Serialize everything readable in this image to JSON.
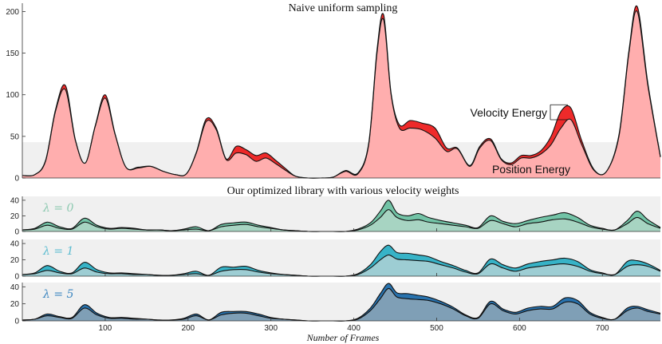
{
  "chart_data": [
    {
      "type": "area",
      "title": "Naive uniform sampling",
      "xlim": [
        0,
        770
      ],
      "ylim": [
        0,
        210
      ],
      "yticks": [
        0,
        50,
        100,
        150,
        200
      ],
      "grid": false,
      "shaded_band_y": [
        0,
        43
      ],
      "colors": {
        "position": "#ffaeae",
        "velocity": "#ee2a2a"
      },
      "series": [
        {
          "name": "Position Energy",
          "x": [
            0,
            15,
            28,
            40,
            52,
            64,
            76,
            88,
            100,
            112,
            125,
            140,
            155,
            170,
            185,
            198,
            210,
            222,
            234,
            246,
            258,
            270,
            282,
            294,
            306,
            318,
            330,
            345,
            360,
            375,
            390,
            405,
            418,
            428,
            436,
            445,
            455,
            468,
            482,
            498,
            512,
            525,
            540,
            552,
            565,
            578,
            590,
            602,
            614,
            626,
            638,
            650,
            662,
            675,
            690,
            705,
            720,
            732,
            742,
            755,
            770
          ],
          "values": [
            3,
            4,
            20,
            80,
            106,
            45,
            18,
            62,
            96,
            52,
            13,
            12,
            14,
            8,
            4,
            5,
            30,
            68,
            58,
            22,
            30,
            28,
            20,
            24,
            17,
            9,
            2,
            0,
            0,
            1,
            8,
            5,
            40,
            150,
            190,
            100,
            60,
            60,
            58,
            48,
            32,
            35,
            14,
            36,
            45,
            22,
            16,
            24,
            24,
            29,
            40,
            60,
            70,
            40,
            9,
            8,
            50,
            150,
            200,
            110,
            25
          ]
        },
        {
          "name": "Velocity Energy",
          "x": [
            0,
            15,
            28,
            40,
            52,
            64,
            76,
            88,
            100,
            112,
            125,
            140,
            155,
            170,
            185,
            198,
            210,
            222,
            234,
            246,
            258,
            270,
            282,
            294,
            306,
            318,
            330,
            345,
            360,
            375,
            390,
            405,
            418,
            428,
            436,
            445,
            455,
            468,
            482,
            498,
            512,
            525,
            540,
            552,
            565,
            578,
            590,
            602,
            614,
            626,
            638,
            650,
            662,
            675,
            690,
            705,
            720,
            732,
            742,
            755,
            770
          ],
          "values": [
            0,
            0,
            1,
            2,
            5,
            1,
            0,
            1,
            4,
            1,
            0,
            1,
            0,
            0,
            0,
            0,
            1,
            3,
            2,
            1,
            8,
            6,
            7,
            6,
            4,
            2,
            0,
            0,
            0,
            0,
            1,
            1,
            2,
            4,
            6,
            2,
            4,
            9,
            8,
            12,
            4,
            1,
            1,
            2,
            2,
            1,
            2,
            3,
            3,
            4,
            10,
            20,
            14,
            5,
            1,
            0,
            2,
            3,
            6,
            3,
            1
          ]
        }
      ],
      "annotations": [
        {
          "text": "Velocity Energy"
        },
        {
          "text": "Position Energy"
        }
      ]
    },
    {
      "type": "area",
      "title": "Our optimized library with various velocity weights",
      "xlabel": "Number of Frames",
      "xlim": [
        0,
        770
      ],
      "xticks": [
        100,
        200,
        300,
        400,
        500,
        600,
        700
      ],
      "ylim": [
        0,
        45
      ],
      "yticks": [
        0,
        20,
        40
      ],
      "subplots": [
        {
          "label": "λ = 0",
          "colors": {
            "position": "#a7d4c2",
            "velocity": "#72c3a6",
            "label": "#8cc9b0"
          },
          "x": [
            0,
            15,
            30,
            45,
            60,
            75,
            90,
            105,
            120,
            135,
            150,
            165,
            180,
            195,
            210,
            225,
            240,
            255,
            270,
            285,
            300,
            315,
            330,
            345,
            360,
            375,
            390,
            405,
            420,
            432,
            442,
            452,
            465,
            478,
            490,
            505,
            520,
            535,
            550,
            565,
            580,
            595,
            610,
            625,
            640,
            655,
            670,
            685,
            700,
            715,
            730,
            742,
            755,
            770
          ],
          "position": [
            2,
            3,
            8,
            4,
            3,
            12,
            6,
            3,
            4,
            3,
            2,
            2,
            1,
            2,
            3,
            1,
            6,
            8,
            9,
            6,
            4,
            2,
            1,
            0,
            0,
            0,
            0,
            2,
            8,
            18,
            28,
            18,
            14,
            15,
            12,
            10,
            8,
            6,
            4,
            14,
            10,
            6,
            10,
            12,
            15,
            16,
            12,
            6,
            3,
            2,
            10,
            18,
            10,
            4
          ],
          "velocity": [
            0,
            1,
            4,
            2,
            1,
            5,
            2,
            1,
            1,
            1,
            0,
            0,
            0,
            1,
            3,
            0,
            3,
            3,
            3,
            2,
            1,
            0,
            0,
            0,
            0,
            0,
            0,
            1,
            3,
            8,
            12,
            6,
            6,
            8,
            6,
            4,
            3,
            2,
            1,
            6,
            3,
            4,
            4,
            6,
            6,
            8,
            6,
            2,
            1,
            0,
            4,
            8,
            5,
            1
          ]
        },
        {
          "label": "λ = 1",
          "colors": {
            "position": "#9dcdd3",
            "velocity": "#37b3c7",
            "label": "#5bbcd0"
          },
          "x": [
            0,
            15,
            30,
            45,
            60,
            75,
            90,
            105,
            120,
            135,
            150,
            165,
            180,
            195,
            210,
            225,
            240,
            255,
            270,
            285,
            300,
            315,
            330,
            345,
            360,
            375,
            390,
            405,
            420,
            432,
            442,
            452,
            465,
            478,
            490,
            505,
            520,
            535,
            550,
            565,
            580,
            595,
            610,
            625,
            640,
            655,
            670,
            685,
            700,
            715,
            730,
            742,
            755,
            770
          ],
          "position": [
            2,
            3,
            7,
            4,
            3,
            10,
            5,
            3,
            3,
            2,
            2,
            1,
            1,
            2,
            3,
            1,
            6,
            8,
            8,
            5,
            3,
            2,
            1,
            0,
            0,
            0,
            0,
            2,
            10,
            20,
            26,
            21,
            20,
            19,
            18,
            14,
            10,
            5,
            3,
            15,
            10,
            6,
            10,
            12,
            14,
            15,
            12,
            6,
            3,
            2,
            12,
            14,
            12,
            6
          ],
          "velocity": [
            0,
            1,
            6,
            2,
            1,
            7,
            3,
            1,
            1,
            1,
            0,
            0,
            0,
            1,
            3,
            0,
            5,
            3,
            4,
            2,
            1,
            0,
            0,
            0,
            0,
            0,
            0,
            1,
            4,
            10,
            12,
            8,
            8,
            7,
            6,
            4,
            3,
            2,
            1,
            6,
            4,
            4,
            5,
            6,
            6,
            7,
            6,
            2,
            1,
            0,
            6,
            5,
            3,
            1
          ]
        },
        {
          "label": "λ = 5",
          "colors": {
            "position": "#7f9fb6",
            "velocity": "#2872ad",
            "label": "#3c86c0"
          },
          "x": [
            0,
            15,
            30,
            45,
            60,
            75,
            90,
            105,
            120,
            135,
            150,
            165,
            180,
            195,
            210,
            225,
            240,
            255,
            270,
            285,
            300,
            315,
            330,
            345,
            360,
            375,
            390,
            405,
            420,
            432,
            442,
            452,
            465,
            478,
            490,
            505,
            520,
            535,
            550,
            565,
            580,
            595,
            610,
            625,
            640,
            655,
            670,
            685,
            700,
            715,
            730,
            742,
            755,
            770
          ],
          "position": [
            1,
            2,
            6,
            4,
            3,
            15,
            7,
            3,
            3,
            2,
            2,
            1,
            1,
            2,
            6,
            1,
            7,
            9,
            9,
            6,
            3,
            2,
            1,
            0,
            0,
            0,
            0,
            2,
            12,
            26,
            38,
            28,
            26,
            25,
            24,
            20,
            14,
            6,
            3,
            20,
            12,
            8,
            12,
            14,
            14,
            22,
            20,
            8,
            3,
            2,
            12,
            15,
            11,
            8
          ],
          "velocity": [
            0,
            0,
            2,
            1,
            1,
            4,
            2,
            1,
            1,
            1,
            0,
            0,
            0,
            1,
            2,
            0,
            3,
            2,
            2,
            2,
            1,
            0,
            0,
            0,
            0,
            0,
            0,
            1,
            3,
            6,
            6,
            5,
            6,
            5,
            4,
            3,
            2,
            1,
            1,
            3,
            2,
            2,
            3,
            3,
            3,
            5,
            4,
            2,
            1,
            0,
            3,
            2,
            2,
            1
          ]
        }
      ]
    }
  ]
}
